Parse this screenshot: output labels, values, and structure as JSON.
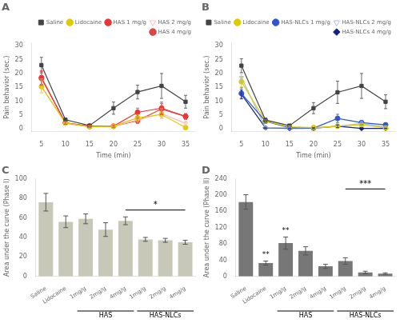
{
  "chart_data": [
    {
      "type": "line",
      "title": "A",
      "x": [
        5,
        10,
        15,
        20,
        25,
        30,
        35
      ],
      "xlim": [
        3,
        37
      ],
      "xticks": [
        5,
        10,
        15,
        20,
        25,
        30,
        35
      ],
      "ylim": [
        -1,
        31
      ],
      "yticks": [
        0,
        5,
        10,
        15,
        20,
        25,
        30
      ],
      "xlabel": "Time (min)",
      "ylabel": "Pain behavior (sec.)",
      "legend": "upper right",
      "grid": false,
      "series": [
        {
          "name": "Saline",
          "color": "#444444",
          "marker": "square",
          "line_style": "solid",
          "values": [
            23.0,
            3.3,
            1.2,
            7.5,
            13.3,
            15.5,
            9.8
          ],
          "errors": [
            2.8,
            0.7,
            0.5,
            2.2,
            2.5,
            4.5,
            2.3
          ]
        },
        {
          "name": "Lidocaine",
          "color": "#ddcc00",
          "marker": "circle",
          "line_style": "solid",
          "values": [
            15.2,
            2.2,
            0.8,
            1.0,
            4.0,
            5.2,
            0.5
          ],
          "errors": [
            2.2,
            0.5,
            0.3,
            0.4,
            1.2,
            1.2,
            0.4
          ]
        },
        {
          "name": "HAS 1 mg/g",
          "color": "#ee3333",
          "marker": "circle",
          "line_style": "solid",
          "values": [
            18.5,
            2.2,
            1.0,
            1.0,
            6.0,
            7.5,
            4.5
          ],
          "errors": [
            2.5,
            0.5,
            0.4,
            0.4,
            1.5,
            2.2,
            1.0
          ]
        },
        {
          "name": "HAS 2 mg/g",
          "color": "#ffbbbb",
          "marker": "triangle_down_open",
          "line_style": "solid",
          "values": [
            15.5,
            2.0,
            0.8,
            1.0,
            3.2,
            5.5,
            2.0
          ],
          "errors": [
            2.5,
            0.5,
            0.3,
            0.4,
            1.2,
            1.8,
            0.8
          ]
        },
        {
          "name": "HAS 4 mg/g",
          "color": "#dd4444",
          "marker": "circle",
          "line_style": "solid",
          "values": [
            18.2,
            2.2,
            0.9,
            1.0,
            3.0,
            7.2,
            4.5
          ],
          "errors": [
            2.5,
            0.5,
            0.3,
            0.4,
            1.0,
            2.0,
            1.0
          ]
        }
      ]
    },
    {
      "type": "line",
      "title": "B",
      "x": [
        5,
        10,
        15,
        20,
        25,
        30,
        35
      ],
      "xlim": [
        3,
        37
      ],
      "xticks": [
        5,
        10,
        15,
        20,
        25,
        30,
        35
      ],
      "ylim": [
        -1,
        31
      ],
      "yticks": [
        0,
        5,
        10,
        15,
        20,
        25,
        30
      ],
      "xlabel": "Time (min)",
      "ylabel": "Pain behavior (sec.)",
      "legend": "upper right",
      "grid": false,
      "series": [
        {
          "name": "Saline",
          "color": "#444444",
          "marker": "square",
          "line_style": "solid",
          "values": [
            22.8,
            3.2,
            1.2,
            7.5,
            13.2,
            15.5,
            9.8
          ],
          "errors": [
            2.5,
            0.8,
            0.5,
            2.0,
            4.0,
            4.5,
            2.5
          ]
        },
        {
          "name": "Lidocaine",
          "color": "#ddcc00",
          "marker": "circle",
          "line_style": "solid",
          "values": [
            17.0,
            2.8,
            0.8,
            0.5,
            1.0,
            1.5,
            0.4
          ],
          "errors": [
            1.8,
            0.5,
            0.3,
            0.3,
            0.4,
            0.5,
            0.3
          ]
        },
        {
          "name": "HAS-NLCs 1 mg/g",
          "color": "#3355cc",
          "marker": "circle",
          "line_style": "solid",
          "values": [
            12.8,
            2.8,
            0.5,
            0.3,
            3.8,
            2.3,
            1.5
          ],
          "errors": [
            2.0,
            0.7,
            0.2,
            0.2,
            1.5,
            0.8,
            0.5
          ]
        },
        {
          "name": "HAS-NLCs 2 mg/g",
          "color": "#aabbdd",
          "marker": "triangle_down_open",
          "line_style": "solid",
          "values": [
            18.5,
            0.5,
            0.4,
            0.3,
            1.0,
            2.0,
            0.8
          ],
          "errors": [
            1.5,
            0.3,
            0.2,
            0.2,
            0.5,
            0.8,
            0.3
          ]
        },
        {
          "name": "HAS-NLCs 4 mg/g",
          "color": "#112288",
          "marker": "diamond",
          "line_style": "solid",
          "values": [
            12.5,
            0.4,
            0.2,
            0.3,
            1.0,
            0.2,
            0.2
          ],
          "errors": [
            1.5,
            0.2,
            0.1,
            0.2,
            0.5,
            0.2,
            0.1
          ]
        }
      ]
    },
    {
      "type": "bar",
      "title": "C",
      "categories": [
        "Saline",
        "Lidocaine",
        "1mg/g",
        "2mg/g",
        "4mg/g",
        "1mg/g",
        "2mg/g",
        "4mg/g"
      ],
      "values": [
        76,
        56,
        59,
        48,
        57,
        38,
        37,
        35
      ],
      "errors": [
        9,
        6,
        5,
        7,
        4,
        2,
        2,
        2
      ],
      "color": "#c8c8b8",
      "ylim": [
        0,
        100
      ],
      "yticks": [
        0,
        20,
        40,
        60,
        80,
        100
      ],
      "ylabel": "Area under the curve (Phase I)",
      "grid": false,
      "groups": [
        {
          "label": "HAS",
          "from": 2,
          "to": 4
        },
        {
          "label": "HAS-NLCs",
          "from": 5,
          "to": 7
        }
      ],
      "annotations": [
        {
          "text": "*",
          "from": 4,
          "to": 7,
          "y": 68
        }
      ]
    },
    {
      "type": "bar",
      "title": "D",
      "categories": [
        "Saline",
        "Lidocaine",
        "1mg/g",
        "2mg/g",
        "4mg/g",
        "1mg/g",
        "2mg/g",
        "4mg/g"
      ],
      "values": [
        183,
        33,
        82,
        63,
        25,
        38,
        10,
        7
      ],
      "errors": [
        18,
        5,
        15,
        10,
        5,
        8,
        3,
        2
      ],
      "color": "#777777",
      "ylim": [
        0,
        240
      ],
      "yticks": [
        0,
        40,
        80,
        120,
        160,
        200,
        240
      ],
      "ylabel": "Area under the curve (Phase II)",
      "grid": false,
      "groups": [
        {
          "label": "HAS",
          "from": 2,
          "to": 4
        },
        {
          "label": "HAS-NLCs",
          "from": 5,
          "to": 7
        }
      ],
      "annotations": [
        {
          "text": "**",
          "index": 1
        },
        {
          "text": "**",
          "index": 2
        },
        {
          "text": "***",
          "from": 5,
          "to": 7,
          "y": 215
        }
      ]
    }
  ]
}
